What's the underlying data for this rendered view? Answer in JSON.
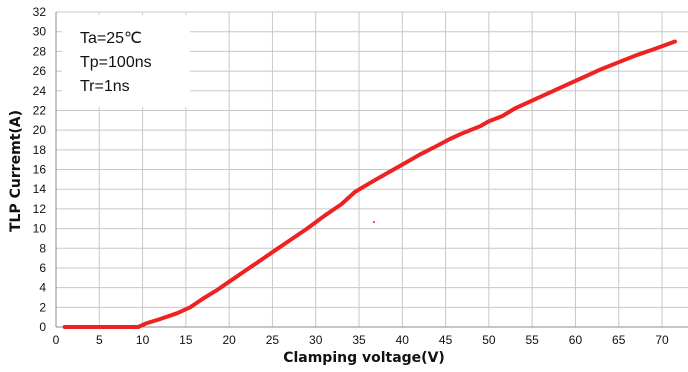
{
  "chart_data": {
    "type": "line",
    "title": "",
    "xlabel": "Clamping voltage(V)",
    "ylabel": "TLP Curremt(A)",
    "xlim": [
      0,
      73
    ],
    "ylim": [
      0,
      32
    ],
    "x_ticks": [
      0,
      5,
      10,
      15,
      20,
      25,
      30,
      35,
      40,
      45,
      50,
      55,
      60,
      65,
      70
    ],
    "y_ticks": [
      0,
      2,
      4,
      6,
      8,
      10,
      12,
      14,
      16,
      18,
      20,
      22,
      24,
      26,
      28,
      30,
      32
    ],
    "grid": true,
    "annotations": [
      "Ta=25℃",
      "Tp=100ns",
      "Tr=1ns"
    ],
    "series": [
      {
        "color": "#ee2222",
        "x": [
          1,
          5,
          9.5,
          10.5,
          12,
          14,
          15.5,
          17,
          18.5,
          20,
          22,
          24,
          25.5,
          27,
          29,
          31,
          33,
          34.5,
          36,
          38,
          40,
          42,
          44,
          45.5,
          47,
          49,
          50,
          51.5,
          53,
          55,
          57,
          59,
          61,
          63,
          65,
          67,
          69,
          71.5
        ],
        "y": [
          0,
          0,
          0,
          0.4,
          0.8,
          1.4,
          2.0,
          2.9,
          3.7,
          4.6,
          5.8,
          7.0,
          7.9,
          8.8,
          10.0,
          11.3,
          12.5,
          13.7,
          14.5,
          15.5,
          16.5,
          17.5,
          18.4,
          19.1,
          19.7,
          20.4,
          20.9,
          21.4,
          22.2,
          23.0,
          23.8,
          24.6,
          25.4,
          26.2,
          26.9,
          27.6,
          28.2,
          29.0
        ]
      }
    ]
  }
}
